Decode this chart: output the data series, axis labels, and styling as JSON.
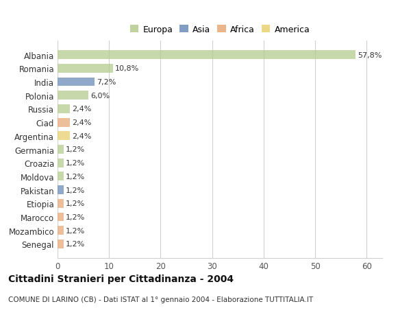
{
  "categories": [
    "Albania",
    "Romania",
    "India",
    "Polonia",
    "Russia",
    "Ciad",
    "Argentina",
    "Germania",
    "Croazia",
    "Moldova",
    "Pakistan",
    "Etiopia",
    "Marocco",
    "Mozambico",
    "Senegal"
  ],
  "values": [
    57.8,
    10.8,
    7.2,
    6.0,
    2.4,
    2.4,
    2.4,
    1.2,
    1.2,
    1.2,
    1.2,
    1.2,
    1.2,
    1.2,
    1.2
  ],
  "labels": [
    "57,8%",
    "10,8%",
    "7,2%",
    "6,0%",
    "2,4%",
    "2,4%",
    "2,4%",
    "1,2%",
    "1,2%",
    "1,2%",
    "1,2%",
    "1,2%",
    "1,2%",
    "1,2%",
    "1,2%"
  ],
  "colors": [
    "#b5cc8e",
    "#b5cc8e",
    "#6b8cba",
    "#b5cc8e",
    "#b5cc8e",
    "#e8a878",
    "#e8d070",
    "#b5cc8e",
    "#b5cc8e",
    "#b5cc8e",
    "#6b8cba",
    "#e8a878",
    "#e8a878",
    "#e8a878",
    "#e8a878"
  ],
  "legend_labels": [
    "Europa",
    "Asia",
    "Africa",
    "America"
  ],
  "legend_colors": [
    "#b5cc8e",
    "#6b8cba",
    "#e8a878",
    "#e8d070"
  ],
  "title": "Cittadini Stranieri per Cittadinanza - 2004",
  "subtitle": "COMUNE DI LARINO (CB) - Dati ISTAT al 1° gennaio 2004 - Elaborazione TUTTITALIA.IT",
  "xlim": [
    0,
    63
  ],
  "xticks": [
    0,
    10,
    20,
    30,
    40,
    50,
    60
  ],
  "background_color": "#ffffff",
  "grid_color": "#d0d0d0"
}
